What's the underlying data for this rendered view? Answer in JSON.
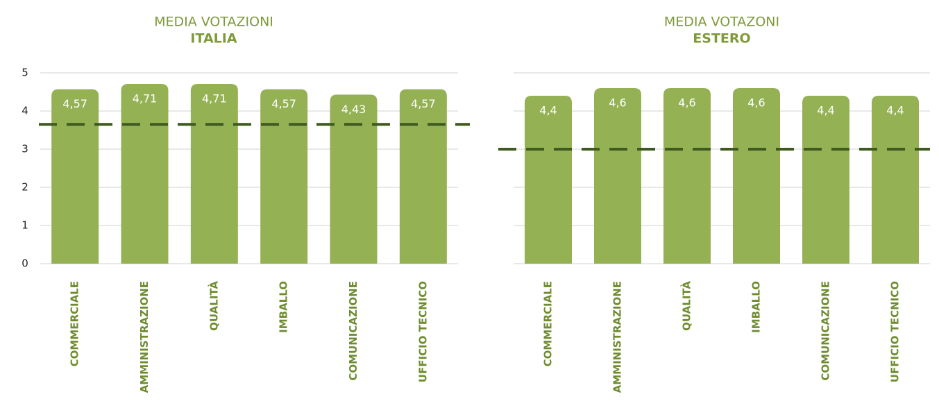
{
  "chart_data": [
    {
      "type": "bar",
      "title": "MEDIA VOTAZIONI",
      "subtitle": "ITALIA",
      "categories": [
        "COMMERCIALE",
        "AMMINISTRAZIONE",
        "QUALITÀ",
        "IMBALLO",
        "COMUNICAZIONE",
        "UFFICIO TECNICO"
      ],
      "values": [
        4.57,
        4.71,
        4.71,
        4.57,
        4.43,
        4.57
      ],
      "value_labels": [
        "4,57",
        "4,71",
        "4,71",
        "4,57",
        "4,43",
        "4,57"
      ],
      "color": "#94b154",
      "reference_line": 3.65,
      "reference_color": "#3e5a1e",
      "ylim": [
        0,
        5
      ],
      "yticks": [
        0,
        1,
        2,
        3,
        4,
        5
      ],
      "show_ytick_labels": true,
      "grid": true
    },
    {
      "type": "bar",
      "title": "MEDIA VOTAZONI",
      "subtitle": "ESTERO",
      "categories": [
        "COMMERCIALE",
        "AMMINISTRAZIONE",
        "QUALITÀ",
        "IMBALLO",
        "COMUNICAZIONE",
        "UFFICIO TECNICO"
      ],
      "values": [
        4.4,
        4.6,
        4.6,
        4.6,
        4.4,
        4.4
      ],
      "value_labels": [
        "4,4",
        "4,6",
        "4,6",
        "4,6",
        "4,4",
        "4,4"
      ],
      "color": "#94b154",
      "reference_line": 3,
      "reference_color": "#3e5a1e",
      "ylim": [
        0,
        5
      ],
      "yticks": [
        0,
        1,
        2,
        3,
        4,
        5
      ],
      "show_ytick_labels": false,
      "grid": true
    }
  ]
}
